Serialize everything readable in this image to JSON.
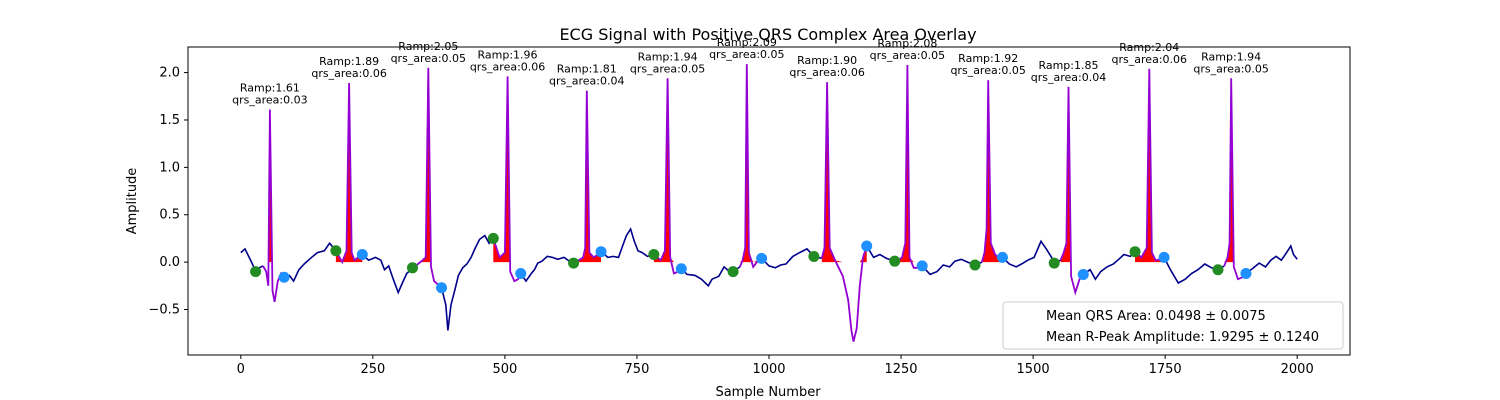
{
  "chart_data": {
    "type": "line",
    "title": "ECG Signal with Positive QRS Complex Area Overlay",
    "xlabel": "Sample Number",
    "ylabel": "Amplitude",
    "xlim": [
      -100,
      2100
    ],
    "ylim": [
      -0.98,
      2.27
    ],
    "xticks": [
      0,
      250,
      500,
      750,
      1000,
      1250,
      1500,
      1750,
      2000
    ],
    "yticks": [
      -0.5,
      0.0,
      0.5,
      1.0,
      1.5,
      2.0
    ],
    "grid": false,
    "legend_position": "lower right",
    "colors": {
      "signal": "#00008b",
      "qrs_segment": "#9400d3",
      "qrs_area": "#ff0000",
      "onset_marker": "#228b22",
      "offset_marker": "#1e90ff"
    },
    "beats": [
      {
        "r_x": 55,
        "ramp": 1.61,
        "qrs_area": 0.03,
        "ramp_label": "Ramp:1.61",
        "area_label": "qrs_area:0.03",
        "onset": [
          28,
          -0.1
        ],
        "offset": [
          82,
          -0.16
        ],
        "area_start": 48
      },
      {
        "r_x": 205,
        "ramp": 1.89,
        "qrs_area": 0.06,
        "ramp_label": "Ramp:1.89",
        "area_label": "qrs_area:0.06",
        "onset": [
          180,
          0.12
        ],
        "offset": [
          230,
          0.08
        ],
        "area_start": 180
      },
      {
        "r_x": 355,
        "ramp": 2.05,
        "qrs_area": 0.05,
        "ramp_label": "Ramp:2.05",
        "area_label": "qrs_area:0.05",
        "onset": [
          325,
          -0.06
        ],
        "offset": [
          380,
          -0.27
        ],
        "area_start": 333
      },
      {
        "r_x": 505,
        "ramp": 1.96,
        "qrs_area": 0.06,
        "ramp_label": "Ramp:1.96",
        "area_label": "qrs_area:0.06",
        "onset": [
          478,
          0.25
        ],
        "offset": [
          530,
          -0.12
        ],
        "area_start": 478
      },
      {
        "r_x": 655,
        "ramp": 1.81,
        "qrs_area": 0.04,
        "ramp_label": "Ramp:1.81",
        "area_label": "qrs_area:0.04",
        "onset": [
          630,
          -0.01
        ],
        "offset": [
          682,
          0.11
        ],
        "area_start": 640
      },
      {
        "r_x": 808,
        "ramp": 1.94,
        "qrs_area": 0.05,
        "ramp_label": "Ramp:1.94",
        "area_label": "qrs_area:0.05",
        "onset": [
          782,
          0.08
        ],
        "offset": [
          834,
          -0.07
        ],
        "area_start": 782
      },
      {
        "r_x": 958,
        "ramp": 2.09,
        "qrs_area": 0.05,
        "ramp_label": "Ramp:2.09",
        "area_label": "qrs_area:0.05",
        "onset": [
          932,
          -0.1
        ],
        "offset": [
          986,
          0.04
        ],
        "area_start": 945
      },
      {
        "r_x": 1110,
        "ramp": 1.9,
        "qrs_area": 0.06,
        "ramp_label": "Ramp:1.90",
        "area_label": "qrs_area:0.06",
        "onset": [
          1085,
          0.06
        ],
        "offset": [
          1185,
          0.17
        ],
        "area_start": 1100
      },
      {
        "r_x": 1262,
        "ramp": 2.08,
        "qrs_area": 0.05,
        "ramp_label": "Ramp:2.08",
        "area_label": "qrs_area:0.05",
        "onset": [
          1238,
          0.01
        ],
        "offset": [
          1290,
          -0.04
        ],
        "area_start": 1245
      },
      {
        "r_x": 1415,
        "ramp": 1.92,
        "qrs_area": 0.05,
        "ramp_label": "Ramp:1.92",
        "area_label": "qrs_area:0.05",
        "onset": [
          1390,
          -0.03
        ],
        "offset": [
          1442,
          0.05
        ],
        "area_start": 1403
      },
      {
        "r_x": 1567,
        "ramp": 1.85,
        "qrs_area": 0.04,
        "ramp_label": "Ramp:1.85",
        "area_label": "qrs_area:0.04",
        "onset": [
          1540,
          -0.01
        ],
        "offset": [
          1595,
          -0.13
        ],
        "area_start": 1552
      },
      {
        "r_x": 1720,
        "ramp": 2.04,
        "qrs_area": 0.06,
        "ramp_label": "Ramp:2.04",
        "area_label": "qrs_area:0.06",
        "onset": [
          1693,
          0.11
        ],
        "offset": [
          1748,
          0.05
        ],
        "area_start": 1693
      },
      {
        "r_x": 1875,
        "ramp": 1.94,
        "qrs_area": 0.05,
        "ramp_label": "Ramp:1.94",
        "area_label": "qrs_area:0.05",
        "onset": [
          1850,
          -0.08
        ],
        "offset": [
          1903,
          -0.12
        ],
        "area_start": 1862
      }
    ],
    "baseline_points": [
      [
        0,
        0.1
      ],
      [
        8,
        0.14
      ],
      [
        15,
        0.06
      ],
      [
        22,
        -0.02
      ],
      [
        28,
        -0.1
      ],
      [
        35,
        -0.06
      ],
      [
        42,
        -0.04
      ],
      [
        82,
        -0.16
      ],
      [
        92,
        -0.14
      ],
      [
        100,
        -0.2
      ],
      [
        110,
        -0.08
      ],
      [
        120,
        -0.02
      ],
      [
        132,
        0.04
      ],
      [
        145,
        0.1
      ],
      [
        158,
        0.12
      ],
      [
        168,
        0.2
      ],
      [
        180,
        0.12
      ],
      [
        230,
        0.08
      ],
      [
        242,
        0.02
      ],
      [
        255,
        0.05
      ],
      [
        265,
        0.02
      ],
      [
        272,
        -0.08
      ],
      [
        280,
        -0.04
      ],
      [
        288,
        -0.17
      ],
      [
        298,
        -0.32
      ],
      [
        306,
        -0.22
      ],
      [
        314,
        -0.12
      ],
      [
        322,
        -0.08
      ],
      [
        333,
        -0.03
      ],
      [
        380,
        -0.27
      ],
      [
        388,
        -0.45
      ],
      [
        392,
        -0.72
      ],
      [
        398,
        -0.45
      ],
      [
        405,
        -0.3
      ],
      [
        412,
        -0.14
      ],
      [
        420,
        -0.06
      ],
      [
        428,
        -0.02
      ],
      [
        436,
        0.05
      ],
      [
        444,
        0.15
      ],
      [
        452,
        0.24
      ],
      [
        462,
        0.28
      ],
      [
        470,
        0.2
      ],
      [
        478,
        0.25
      ],
      [
        530,
        -0.12
      ],
      [
        540,
        -0.2
      ],
      [
        550,
        -0.12
      ],
      [
        556,
        -0.08
      ],
      [
        562,
        -0.01
      ],
      [
        570,
        0.01
      ],
      [
        580,
        0.06
      ],
      [
        590,
        0.05
      ],
      [
        600,
        0.03
      ],
      [
        612,
        0.05
      ],
      [
        622,
        0.01
      ],
      [
        630,
        -0.01
      ],
      [
        640,
        0.02
      ],
      [
        682,
        0.11
      ],
      [
        695,
        0.05
      ],
      [
        705,
        0.06
      ],
      [
        715,
        0.05
      ],
      [
        722,
        0.16
      ],
      [
        730,
        0.28
      ],
      [
        738,
        0.35
      ],
      [
        745,
        0.22
      ],
      [
        752,
        0.12
      ],
      [
        760,
        0.1
      ],
      [
        770,
        0.06
      ],
      [
        782,
        0.08
      ],
      [
        834,
        -0.07
      ],
      [
        845,
        -0.13
      ],
      [
        860,
        -0.14
      ],
      [
        872,
        -0.18
      ],
      [
        885,
        -0.25
      ],
      [
        892,
        -0.18
      ],
      [
        905,
        -0.15
      ],
      [
        915,
        -0.05
      ],
      [
        925,
        -0.1
      ],
      [
        932,
        -0.1
      ],
      [
        945,
        -0.05
      ],
      [
        986,
        0.04
      ],
      [
        1000,
        -0.04
      ],
      [
        1012,
        -0.06
      ],
      [
        1022,
        -0.03
      ],
      [
        1032,
        -0.02
      ],
      [
        1045,
        0.06
      ],
      [
        1058,
        0.1
      ],
      [
        1072,
        0.14
      ],
      [
        1085,
        0.06
      ],
      [
        1100,
        0.04
      ],
      [
        1185,
        0.17
      ],
      [
        1198,
        0.05
      ],
      [
        1210,
        0.08
      ],
      [
        1222,
        0.04
      ],
      [
        1232,
        0.02
      ],
      [
        1238,
        0.01
      ],
      [
        1245,
        0.02
      ],
      [
        1290,
        -0.04
      ],
      [
        1305,
        -0.13
      ],
      [
        1318,
        -0.1
      ],
      [
        1330,
        -0.03
      ],
      [
        1342,
        -0.05
      ],
      [
        1352,
        0.01
      ],
      [
        1364,
        0.03
      ],
      [
        1376,
        0.0
      ],
      [
        1390,
        -0.03
      ],
      [
        1403,
        0.0
      ],
      [
        1442,
        0.05
      ],
      [
        1455,
        -0.02
      ],
      [
        1468,
        -0.05
      ],
      [
        1478,
        -0.02
      ],
      [
        1490,
        0.02
      ],
      [
        1502,
        0.05
      ],
      [
        1515,
        0.22
      ],
      [
        1525,
        0.14
      ],
      [
        1535,
        0.05
      ],
      [
        1540,
        -0.01
      ],
      [
        1552,
        0.02
      ],
      [
        1595,
        -0.13
      ],
      [
        1608,
        -0.08
      ],
      [
        1618,
        -0.18
      ],
      [
        1628,
        -0.1
      ],
      [
        1640,
        -0.05
      ],
      [
        1652,
        -0.02
      ],
      [
        1662,
        0.03
      ],
      [
        1672,
        0.08
      ],
      [
        1684,
        0.06
      ],
      [
        1693,
        0.11
      ],
      [
        1748,
        0.05
      ],
      [
        1760,
        -0.08
      ],
      [
        1775,
        -0.22
      ],
      [
        1788,
        -0.18
      ],
      [
        1800,
        -0.12
      ],
      [
        1812,
        -0.08
      ],
      [
        1825,
        -0.02
      ],
      [
        1838,
        -0.06
      ],
      [
        1850,
        -0.08
      ],
      [
        1862,
        -0.04
      ],
      [
        1903,
        -0.12
      ],
      [
        1915,
        -0.07
      ],
      [
        1928,
        -0.01
      ],
      [
        1940,
        -0.05
      ],
      [
        1950,
        0.02
      ],
      [
        1960,
        0.06
      ],
      [
        1970,
        0.02
      ],
      [
        1980,
        0.1
      ],
      [
        1988,
        0.17
      ],
      [
        1993,
        0.08
      ],
      [
        2000,
        0.03
      ]
    ],
    "qrs_tail_points": [
      [
        [
          42,
          -0.04
        ],
        [
          48,
          -0.1
        ],
        [
          52,
          -0.25
        ],
        [
          55,
          1.61
        ],
        [
          60,
          -0.3
        ],
        [
          64,
          -0.42
        ],
        [
          70,
          -0.2
        ],
        [
          76,
          -0.12
        ],
        [
          82,
          -0.16
        ]
      ],
      [
        [
          180,
          0.12
        ],
        [
          192,
          0.0
        ],
        [
          200,
          0.12
        ],
        [
          205,
          1.89
        ],
        [
          210,
          0.1
        ],
        [
          215,
          0.02
        ],
        [
          222,
          0.05
        ],
        [
          230,
          0.08
        ]
      ],
      [
        [
          333,
          -0.03
        ],
        [
          340,
          0.0
        ],
        [
          350,
          0.05
        ],
        [
          355,
          2.05
        ],
        [
          360,
          -0.05
        ],
        [
          366,
          -0.2
        ],
        [
          374,
          -0.24
        ],
        [
          380,
          -0.27
        ]
      ],
      [
        [
          478,
          0.25
        ],
        [
          490,
          0.05
        ],
        [
          500,
          0.1
        ],
        [
          505,
          1.96
        ],
        [
          510,
          -0.1
        ],
        [
          518,
          -0.2
        ],
        [
          525,
          -0.18
        ],
        [
          530,
          -0.12
        ]
      ],
      [
        [
          640,
          0.02
        ],
        [
          648,
          0.05
        ],
        [
          652,
          0.15
        ],
        [
          655,
          1.81
        ],
        [
          660,
          0.1
        ],
        [
          668,
          0.05
        ],
        [
          676,
          0.08
        ],
        [
          682,
          0.11
        ]
      ],
      [
        [
          782,
          0.08
        ],
        [
          795,
          0.02
        ],
        [
          803,
          0.12
        ],
        [
          808,
          1.94
        ],
        [
          813,
          0.05
        ],
        [
          820,
          -0.12
        ],
        [
          828,
          -0.1
        ],
        [
          834,
          -0.07
        ]
      ],
      [
        [
          945,
          -0.05
        ],
        [
          950,
          0.02
        ],
        [
          955,
          0.15
        ],
        [
          958,
          2.09
        ],
        [
          962,
          0.1
        ],
        [
          970,
          -0.05
        ],
        [
          980,
          0.02
        ],
        [
          986,
          0.04
        ]
      ],
      [
        [
          1100,
          0.04
        ],
        [
          1105,
          0.15
        ],
        [
          1110,
          1.9
        ],
        [
          1115,
          0.15
        ],
        [
          1125,
          0.02
        ],
        [
          1140,
          -0.15
        ],
        [
          1150,
          -0.4
        ],
        [
          1156,
          -0.72
        ],
        [
          1160,
          -0.84
        ],
        [
          1166,
          -0.7
        ],
        [
          1172,
          -0.25
        ],
        [
          1178,
          0.05
        ],
        [
          1185,
          0.17
        ]
      ],
      [
        [
          1245,
          0.02
        ],
        [
          1252,
          0.05
        ],
        [
          1258,
          0.2
        ],
        [
          1262,
          2.08
        ],
        [
          1266,
          0.05
        ],
        [
          1274,
          -0.06
        ],
        [
          1282,
          -0.06
        ],
        [
          1290,
          -0.04
        ]
      ],
      [
        [
          1403,
          0.0
        ],
        [
          1408,
          0.1
        ],
        [
          1412,
          0.35
        ],
        [
          1415,
          1.92
        ],
        [
          1420,
          0.2
        ],
        [
          1428,
          0.08
        ],
        [
          1436,
          0.04
        ],
        [
          1442,
          0.05
        ]
      ],
      [
        [
          1552,
          0.02
        ],
        [
          1558,
          0.1
        ],
        [
          1563,
          0.2
        ],
        [
          1567,
          1.85
        ],
        [
          1572,
          -0.15
        ],
        [
          1580,
          -0.32
        ],
        [
          1588,
          -0.18
        ],
        [
          1595,
          -0.13
        ]
      ],
      [
        [
          1693,
          0.11
        ],
        [
          1705,
          0.05
        ],
        [
          1715,
          0.15
        ],
        [
          1720,
          2.04
        ],
        [
          1725,
          0.1
        ],
        [
          1732,
          0.02
        ],
        [
          1742,
          0.03
        ],
        [
          1748,
          0.05
        ]
      ],
      [
        [
          1862,
          -0.04
        ],
        [
          1868,
          0.05
        ],
        [
          1872,
          0.2
        ],
        [
          1875,
          1.94
        ],
        [
          1880,
          -0.05
        ],
        [
          1888,
          -0.18
        ],
        [
          1896,
          -0.16
        ],
        [
          1903,
          -0.12
        ]
      ]
    ],
    "legend": [
      "Mean QRS Area: 0.0498 ± 0.0075",
      "Mean R-Peak Amplitude: 1.9295 ± 0.1240"
    ]
  }
}
